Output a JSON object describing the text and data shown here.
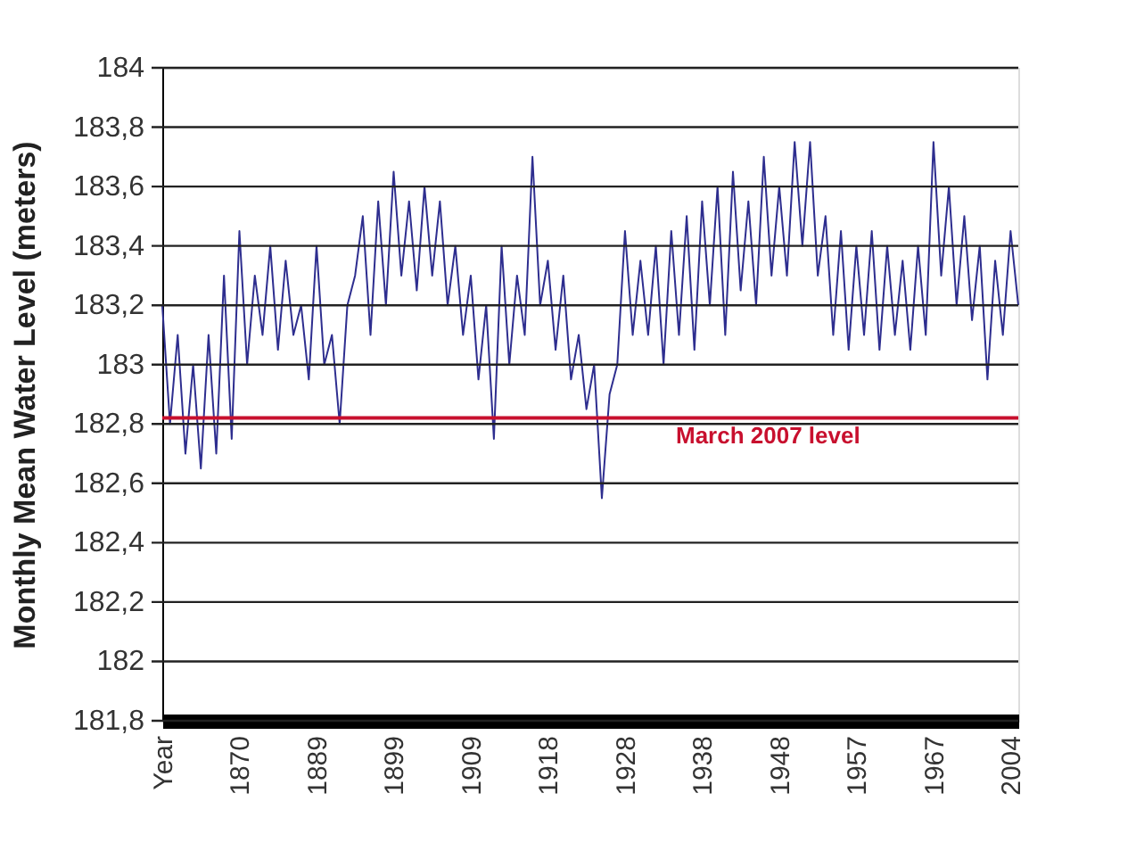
{
  "chart_data": {
    "type": "line",
    "ylabel": "Monthly Mean Water Level (meters)",
    "categories": [
      "Year",
      null,
      null,
      null,
      null,
      null,
      null,
      null,
      null,
      null,
      "1870",
      null,
      null,
      null,
      null,
      null,
      null,
      null,
      null,
      null,
      "1889",
      null,
      null,
      null,
      null,
      null,
      null,
      null,
      null,
      null,
      "1899",
      null,
      null,
      null,
      null,
      null,
      null,
      null,
      null,
      null,
      "1909",
      null,
      null,
      null,
      null,
      null,
      null,
      null,
      null,
      null,
      "1918",
      null,
      null,
      null,
      null,
      null,
      null,
      null,
      null,
      null,
      "1928",
      null,
      null,
      null,
      null,
      null,
      null,
      null,
      null,
      null,
      "1938",
      null,
      null,
      null,
      null,
      null,
      null,
      null,
      null,
      null,
      "1948",
      null,
      null,
      null,
      null,
      null,
      null,
      null,
      null,
      null,
      "1957",
      null,
      null,
      null,
      null,
      null,
      null,
      null,
      null,
      null,
      "1967",
      null,
      null,
      null,
      null,
      null,
      null,
      null,
      null,
      null,
      "2004",
      null
    ],
    "series": [
      {
        "color": "#2e2e8f",
        "values": [
          183.2,
          182.8,
          183.1,
          182.7,
          183.0,
          182.65,
          183.1,
          182.7,
          183.3,
          182.75,
          183.45,
          183.0,
          183.3,
          183.1,
          183.4,
          183.05,
          183.35,
          183.1,
          183.2,
          182.95,
          183.4,
          183.0,
          183.1,
          182.8,
          183.2,
          183.3,
          183.5,
          183.1,
          183.55,
          183.2,
          183.65,
          183.3,
          183.55,
          183.25,
          183.6,
          183.3,
          183.55,
          183.2,
          183.4,
          183.1,
          183.3,
          182.95,
          183.2,
          182.75,
          183.4,
          183.0,
          183.3,
          183.1,
          183.7,
          183.2,
          183.35,
          183.05,
          183.3,
          182.95,
          183.1,
          182.85,
          183.0,
          182.55,
          182.9,
          183.0,
          183.45,
          183.1,
          183.35,
          183.1,
          183.4,
          183.0,
          183.45,
          183.1,
          183.5,
          183.05,
          183.55,
          183.2,
          183.6,
          183.1,
          183.65,
          183.25,
          183.55,
          183.2,
          183.7,
          183.3,
          183.6,
          183.3,
          183.75,
          183.4,
          183.75,
          183.3,
          183.5,
          183.1,
          183.45,
          183.05,
          183.4,
          183.1,
          183.45,
          183.05,
          183.4,
          183.1,
          183.35,
          183.05,
          183.4,
          183.1,
          183.75,
          183.3,
          183.6,
          183.2,
          183.5,
          183.15,
          183.4,
          182.95,
          183.35,
          183.1,
          183.45,
          183.2
        ]
      }
    ],
    "ylim": [
      181.8,
      184
    ],
    "yticks": [
      {
        "value": 181.8,
        "label": "181,8"
      },
      {
        "value": 182,
        "label": "182"
      },
      {
        "value": 182.2,
        "label": "182,2"
      },
      {
        "value": 182.4,
        "label": "182,4"
      },
      {
        "value": 182.6,
        "label": "182,6"
      },
      {
        "value": 182.8,
        "label": "182,8"
      },
      {
        "value": 183,
        "label": "183"
      },
      {
        "value": 183.2,
        "label": "183,2"
      },
      {
        "value": 183.4,
        "label": "183,4"
      },
      {
        "value": 183.6,
        "label": "183,6"
      },
      {
        "value": 183.8,
        "label": "183,8"
      },
      {
        "value": 184,
        "label": "184"
      }
    ],
    "grid": "y",
    "ref_lines": [
      {
        "axis": "y",
        "value": 182.82,
        "label": "March 2007 level",
        "color": "#c8102e"
      }
    ]
  }
}
